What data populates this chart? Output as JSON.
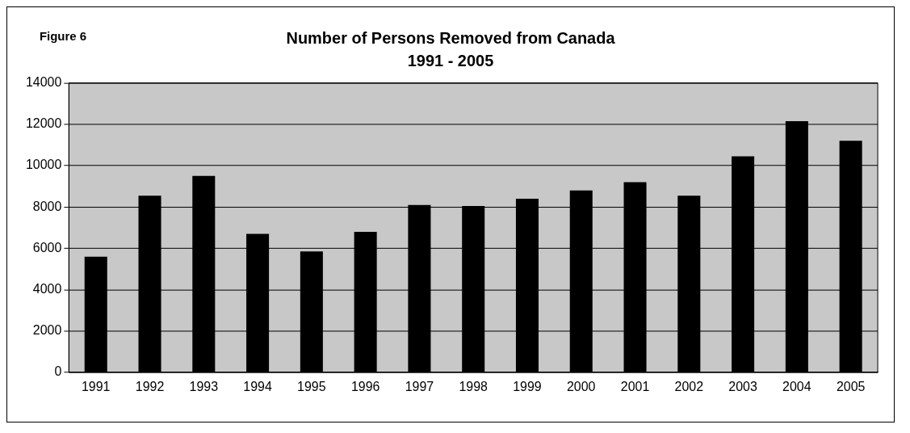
{
  "chart_data": {
    "type": "bar",
    "title": "Number of Persons Removed from Canada",
    "subtitle": "1991 - 2005",
    "annotations": [
      "Figure 6"
    ],
    "categories": [
      "1991",
      "1992",
      "1993",
      "1994",
      "1995",
      "1996",
      "1997",
      "1998",
      "1999",
      "2000",
      "2001",
      "2002",
      "2003",
      "2004",
      "2005"
    ],
    "values": [
      5600,
      8550,
      9500,
      6700,
      5850,
      6800,
      8100,
      8050,
      8400,
      8800,
      9200,
      8550,
      10450,
      12150,
      11200
    ],
    "color": "#000000",
    "ylim": [
      0,
      14000
    ],
    "yticks": [
      0,
      2000,
      4000,
      6000,
      8000,
      10000,
      12000,
      14000
    ],
    "grid": "y",
    "legend": false
  }
}
